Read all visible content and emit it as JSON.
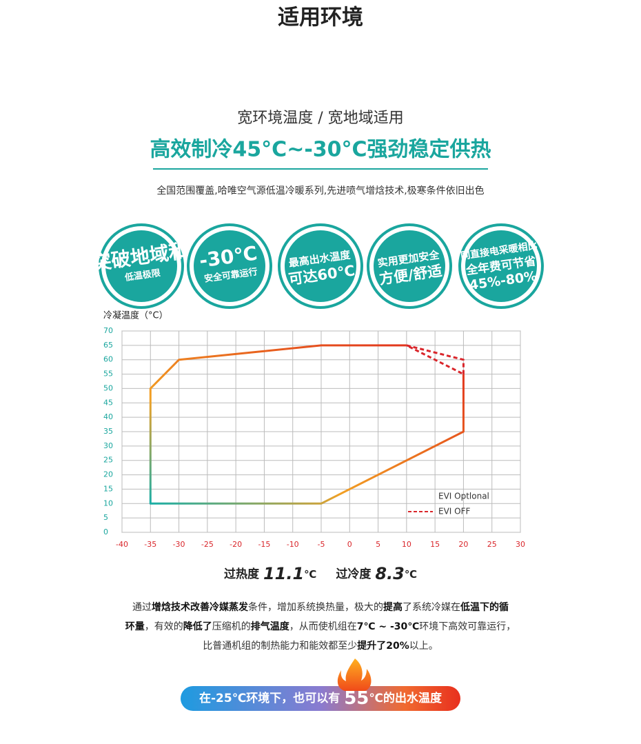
{
  "header": {
    "title": "适用环境",
    "subtitle": "宽环境温度 / 宽地域适用",
    "headline": "高效制冷45°C~-30°C强劲稳定供热",
    "description": "全国范围覆盖,哈唯空气源低温冷暖系列,先进喷气增焓技术,极寒条件依旧出色"
  },
  "badges": [
    {
      "lines": [
        "突破地域和",
        "低温极限"
      ]
    },
    {
      "lines": [
        "-30℃",
        "安全可靠运行"
      ]
    },
    {
      "lines": [
        "最高出水温度",
        "可达60℃"
      ]
    },
    {
      "lines": [
        "实用更加安全",
        "方便/舒适"
      ]
    },
    {
      "lines": [
        "同直接电采暖相比",
        "全年费可节省",
        "45%-80%"
      ]
    }
  ],
  "chart_data": {
    "type": "line",
    "y_label": "冷凝温度（°C）",
    "xlim": [
      -40,
      30
    ],
    "ylim": [
      0,
      70
    ],
    "xticks": [
      -40,
      -35,
      -30,
      -25,
      -20,
      -15,
      -10,
      -5,
      0,
      5,
      10,
      15,
      20,
      25,
      30
    ],
    "yticks": [
      0,
      5,
      10,
      15,
      20,
      25,
      30,
      35,
      40,
      45,
      50,
      55,
      60,
      65,
      70
    ],
    "grid": true,
    "series": [
      {
        "name": "EVI Optlonal",
        "colors": [
          "#1aaea6",
          "#f2a024",
          "#e8601e",
          "#e0281e"
        ],
        "dash": false,
        "x": [
          20,
          20,
          -5,
          -35,
          -35,
          -30,
          -5,
          10
        ],
        "y": [
          55,
          35,
          10,
          10,
          50,
          60,
          65,
          65
        ]
      },
      {
        "name": "EVI OFF",
        "color": "#d9252a",
        "dash": true,
        "x": [
          20,
          20,
          10,
          20
        ],
        "y": [
          55,
          60,
          65,
          55
        ]
      }
    ]
  },
  "stats": [
    {
      "label": "过热度",
      "value": "11.1",
      "unit": "℃"
    },
    {
      "label": "过冷度",
      "value": "8.3",
      "unit": "℃"
    }
  ],
  "paragraph": [
    [
      {
        "text": "通过",
        "bold": false
      },
      {
        "text": "增焓技术改善冷媒蒸发",
        "bold": true
      },
      {
        "text": "条件，增加系统换热量，极大的",
        "bold": false
      },
      {
        "text": "提高",
        "bold": true
      },
      {
        "text": "了系统冷媒在",
        "bold": false
      },
      {
        "text": "低温下的循",
        "bold": true
      }
    ],
    [
      {
        "text": "环量",
        "bold": true
      },
      {
        "text": "，有效的",
        "bold": false
      },
      {
        "text": "降低了",
        "bold": true
      },
      {
        "text": "压缩机的",
        "bold": false
      },
      {
        "text": "排气温度",
        "bold": true
      },
      {
        "text": "，从而使机组在",
        "bold": false
      },
      {
        "text": "7℃ ~ -30℃",
        "bold": true
      },
      {
        "text": "环境下高效可靠运行，",
        "bold": false
      }
    ],
    [
      {
        "text": "比普通机组的制热能力和能效都至少",
        "bold": false
      },
      {
        "text": "提升了20%",
        "bold": true
      },
      {
        "text": "以上。",
        "bold": false
      }
    ]
  ],
  "banner": [
    {
      "text": "在-25℃环境下，也可以有 ",
      "big": false
    },
    {
      "text": "55",
      "big": true
    },
    {
      "text": "℃的出水温度",
      "big": false
    }
  ]
}
